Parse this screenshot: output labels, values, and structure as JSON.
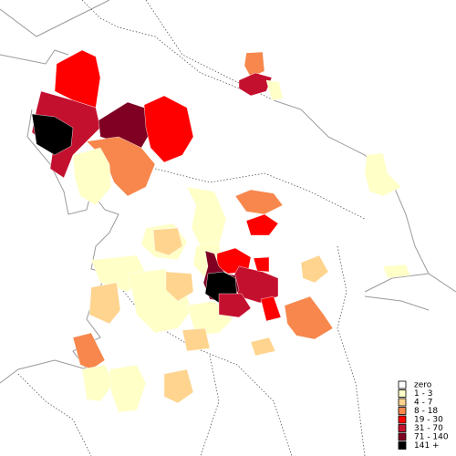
{
  "legend": {
    "items": [
      {
        "label": "zero",
        "color": "#ffffff"
      },
      {
        "label": "1 - 3",
        "color": "#ffffc8"
      },
      {
        "label": "4 - 7",
        "color": "#fed48e"
      },
      {
        "label": "8 - 18",
        "color": "#f7874c"
      },
      {
        "label": "19 - 30",
        "color": "#fe0000"
      },
      {
        "label": "31 - 70",
        "color": "#c4102f"
      },
      {
        "label": "71 - 140",
        "color": "#7f0022"
      },
      {
        "label": "141 +",
        "color": "#000000"
      }
    ]
  }
}
